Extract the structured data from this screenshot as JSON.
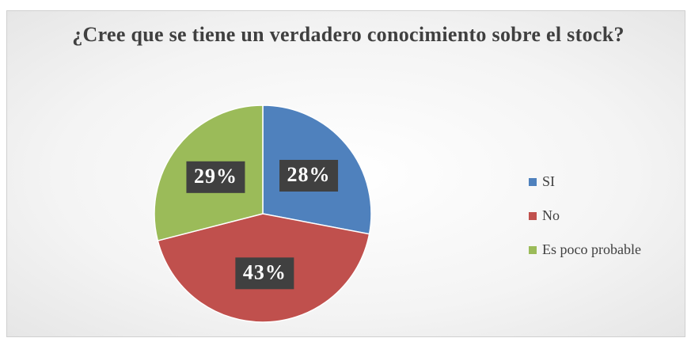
{
  "chart_data": {
    "type": "pie",
    "title": "¿Cree que se tiene un verdadero conocimiento sobre el stock?",
    "categories": [
      "SI",
      "No",
      "Es poco probable"
    ],
    "values": [
      28,
      43,
      29
    ],
    "value_labels": [
      "28%",
      "43%",
      "29%"
    ],
    "colors": [
      "#4f81bd",
      "#c0504d",
      "#9bbb59"
    ],
    "legend": "right"
  }
}
